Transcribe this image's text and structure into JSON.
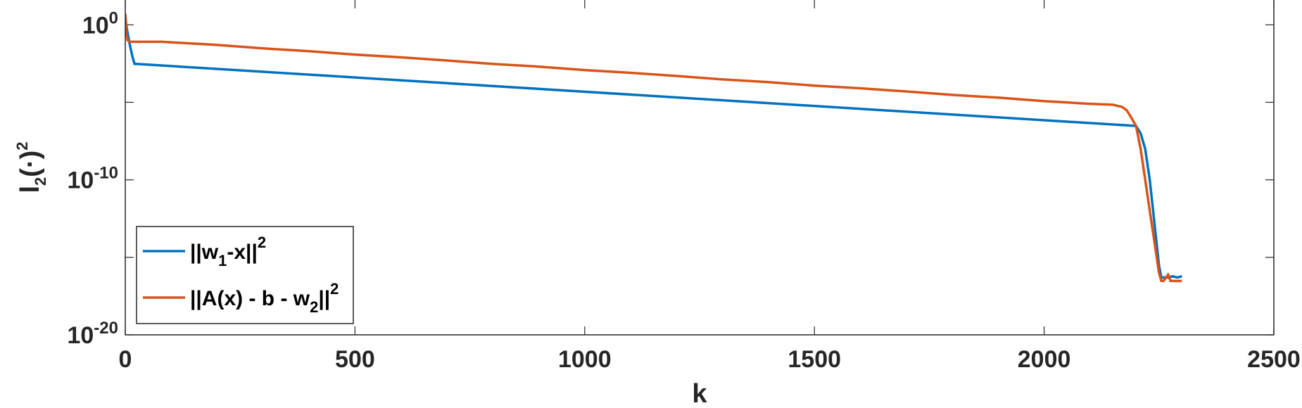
{
  "chart_data": {
    "type": "line",
    "xlabel": "k",
    "ylabel": {
      "base": "l",
      "subscript": "2",
      "mid": "(·)",
      "superscript": "2"
    },
    "xlim": [
      0,
      2500
    ],
    "ylim": [
      1e-20,
      1.0
    ],
    "yscale": "log",
    "xticks": [
      0,
      500,
      1000,
      1500,
      2000,
      2500
    ],
    "xtick_labels": [
      "0",
      "500",
      "1000",
      "1500",
      "2000",
      "2500"
    ],
    "yticks": [
      {
        "value": 1.0,
        "base": "10",
        "exp": "0"
      },
      {
        "value": 1e-10,
        "base": "10",
        "exp": "-10"
      },
      {
        "value": 1e-20,
        "base": "10",
        "exp": "-20"
      }
    ],
    "legend_position": "bottom-left",
    "series": [
      {
        "name": {
          "pre": "||w",
          "sub": "1",
          "post": "-x||",
          "sup": "2"
        },
        "color": "#0072BD",
        "x": [
          0,
          2,
          5,
          10,
          15,
          20,
          25,
          2200,
          2210,
          2220,
          2230,
          2250,
          2255,
          2260,
          2270,
          2280,
          2290,
          2300
        ],
        "y": [
          5.0,
          1.0,
          0.3,
          0.05,
          0.01,
          0.003,
          0.003,
          3e-07,
          1e-07,
          1e-08,
          1e-10,
          3e-16,
          5e-17,
          5e-17,
          5e-17,
          6e-17,
          5e-17,
          6e-17
        ]
      },
      {
        "name": {
          "pre": "||A(x) - b - w",
          "sub": "2",
          "post": "||",
          "sup": "2"
        },
        "color": "#D95319",
        "x": [
          0,
          2,
          5,
          10,
          80,
          200,
          300,
          400,
          500,
          600,
          700,
          800,
          900,
          1000,
          1100,
          1200,
          1300,
          1400,
          1500,
          1600,
          1700,
          1800,
          1900,
          2000,
          2100,
          2150,
          2170,
          2180,
          2190,
          2200,
          2210,
          2220,
          2230,
          2240,
          2250,
          2255,
          2260,
          2270,
          2275,
          2280,
          2290,
          2300
        ],
        "y": [
          5.0,
          0.3,
          0.1,
          0.08,
          0.08,
          0.05,
          0.03,
          0.02,
          0.012,
          0.008,
          0.005,
          0.003,
          0.002,
          0.0012,
          0.0008,
          0.0005,
          0.0003,
          0.0002,
          0.00012,
          8e-05,
          5e-05,
          3e-05,
          2e-05,
          1.2e-05,
          8e-06,
          7e-06,
          5e-06,
          3e-06,
          1e-06,
          3e-07,
          1e-08,
          1e-10,
          1e-12,
          1e-14,
          1e-16,
          3e-17,
          3e-17,
          8e-17,
          3e-17,
          3e-17,
          3e-17,
          3e-17
        ]
      }
    ]
  }
}
